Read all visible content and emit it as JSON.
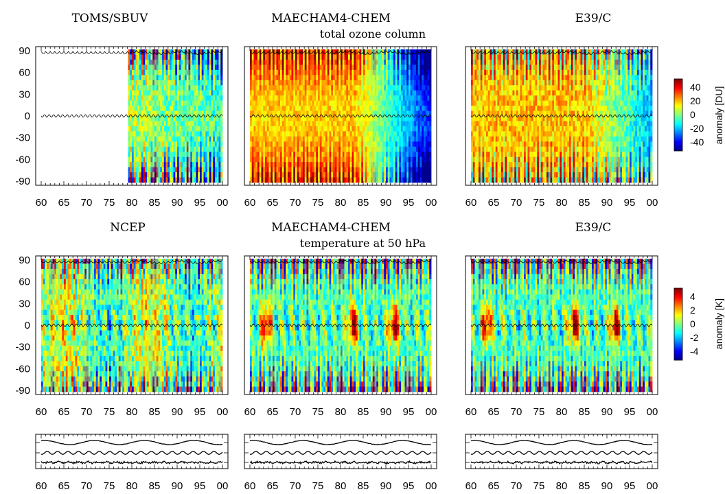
{
  "figure": {
    "rows": [
      {
        "subtitle": "total ozone column",
        "cbar_label": "anomaly [DU]",
        "cbar_ticks": [
          40,
          20,
          0,
          -20,
          -40
        ]
      },
      {
        "subtitle": "temperature at 50 hPa",
        "cbar_label": "anomaly [K]",
        "cbar_ticks": [
          4,
          2,
          0,
          -2,
          -4
        ]
      }
    ],
    "columns": [
      {
        "titles": [
          "TOMS/SBUV",
          "NCEP"
        ]
      },
      {
        "titles": [
          "MAECHAM4-CHEM",
          "MAECHAM4-CHEM"
        ]
      },
      {
        "titles": [
          "E39/C",
          "E39/C"
        ]
      }
    ],
    "y_tick_labels": [
      "90",
      "60",
      "30",
      "0",
      "-30",
      "-60",
      "-90"
    ],
    "x_tick_labels": [
      "60",
      "65",
      "70",
      "75",
      "80",
      "85",
      "90",
      "95",
      "00"
    ]
  },
  "colors": {
    "colormap": [
      "#00008f",
      "#0000ff",
      "#0080ff",
      "#00ffff",
      "#80ff80",
      "#ffff00",
      "#ff8000",
      "#ff0000",
      "#800000"
    ],
    "line": "#000000"
  },
  "chart_data": [
    {
      "type": "heatmap",
      "title": "TOMS/SBUV",
      "subtitle": "",
      "colorbar_label": "anomaly [DU]",
      "xlim": [
        1960,
        2000
      ],
      "ylim": [
        -90,
        90
      ],
      "x_ticks": [
        "60",
        "65",
        "70",
        "75",
        "80",
        "85",
        "90",
        "95",
        "00"
      ],
      "y_ticks": [
        90,
        60,
        30,
        0,
        -30,
        -60,
        -90
      ],
      "color_range": [
        -50,
        50
      ],
      "data_start_year": 1979,
      "pattern": "seasonal high-latitude anomalies, strongly negative late 1980s-1990s near poles"
    },
    {
      "type": "heatmap",
      "title": "MAECHAM4-CHEM",
      "subtitle": "total ozone column",
      "colorbar_label": "anomaly [DU]",
      "xlim": [
        1960,
        2000
      ],
      "ylim": [
        -90,
        90
      ],
      "color_range": [
        -50,
        50
      ],
      "pattern": "positive (yellow/red) 1960-1983, negative (blue) after 1985, strongest at southern high latitudes"
    },
    {
      "type": "heatmap",
      "title": "E39/C",
      "subtitle": "",
      "colorbar_label": "anomaly [DU]",
      "xlim": [
        1960,
        2000
      ],
      "ylim": [
        -90,
        90
      ],
      "color_range": [
        -50,
        50
      ],
      "pattern": "mostly positive early period with seasonal high-latitude stripes, slightly negative late period"
    },
    {
      "type": "heatmap",
      "title": "NCEP",
      "subtitle": "",
      "colorbar_label": "anomaly [K]",
      "xlim": [
        1960,
        2000
      ],
      "ylim": [
        -90,
        90
      ],
      "color_range": [
        -5,
        5
      ],
      "pattern": "alternating positive/negative tropical temperature anomalies with strong polar seasonal stripes"
    },
    {
      "type": "heatmap",
      "title": "MAECHAM4-CHEM",
      "subtitle": "temperature at 50 hPa",
      "colorbar_label": "anomaly [K]",
      "xlim": [
        1960,
        2000
      ],
      "ylim": [
        -90,
        90
      ],
      "color_range": [
        -5,
        5
      ],
      "pattern": "warm tropical anomalies near 1963, 1982, 1991; cool otherwise"
    },
    {
      "type": "heatmap",
      "title": "E39/C",
      "subtitle": "",
      "colorbar_label": "anomaly [K]",
      "xlim": [
        1960,
        2000
      ],
      "ylim": [
        -90,
        90
      ],
      "color_range": [
        -5,
        5
      ],
      "pattern": "warm tropical anomalies near 1963, 1982, 1991 with polar seasonal stripes"
    },
    {
      "type": "line",
      "series_count": 3,
      "xlim": [
        1960,
        2000
      ],
      "pattern": "three stacked forcing time series (top smooth solar-like cycle, middle QBO-like oscillation, bottom noisy)"
    }
  ]
}
